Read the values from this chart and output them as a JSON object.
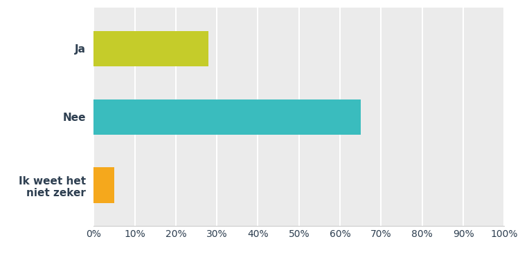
{
  "categories": [
    "Ja",
    "Nee",
    "Ik weet het\nniet zeker"
  ],
  "values": [
    28,
    65,
    5
  ],
  "bar_colors": [
    "#c5cc2a",
    "#3abcbe",
    "#f5a81c"
  ],
  "plot_bg_color": "#ebebeb",
  "fig_bg_color": "#ffffff",
  "xlim": [
    0,
    100
  ],
  "xtick_values": [
    0,
    10,
    20,
    30,
    40,
    50,
    60,
    70,
    80,
    90,
    100
  ],
  "label_fontsize": 11,
  "tick_fontsize": 10,
  "bar_height": 0.52,
  "label_color": "#2d3e50",
  "grid_color": "#ffffff",
  "spine_color": "#cccccc"
}
